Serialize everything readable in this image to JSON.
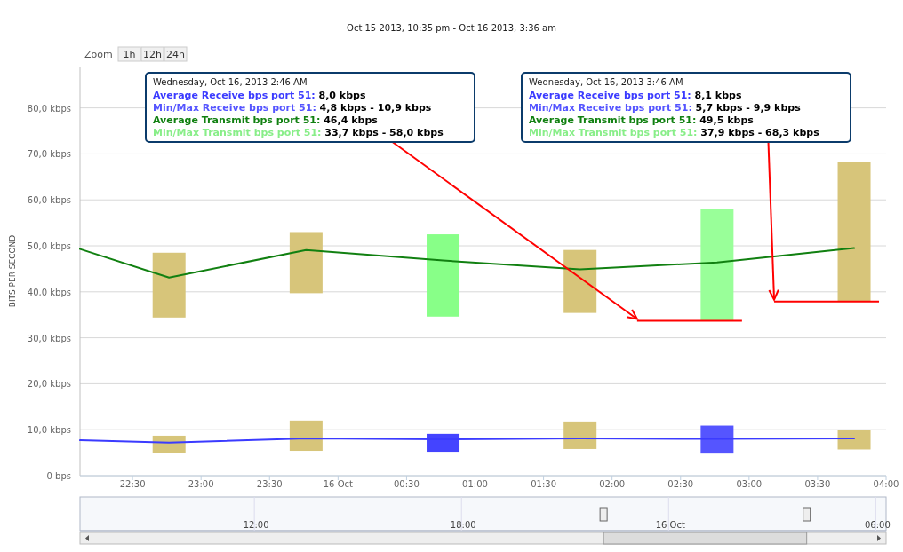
{
  "chart_data": {
    "type": "bar",
    "title": "Oct 15 2013, 10:35 pm - Oct 16 2013, 3:36 am",
    "ylabel": "BITS PER SECOND",
    "xlim": [
      "2013-10-15T22:07",
      "2013-10-16T04:00"
    ],
    "xticks": [
      {
        "value": "2013-10-15T22:30",
        "label": "22:30"
      },
      {
        "value": "2013-10-15T23:00",
        "label": "23:00"
      },
      {
        "value": "2013-10-15T23:30",
        "label": "23:30"
      },
      {
        "value": "2013-10-16T00:00",
        "label": "16 Oct"
      },
      {
        "value": "2013-10-16T00:30",
        "label": "00:30"
      },
      {
        "value": "2013-10-16T01:00",
        "label": "01:00"
      },
      {
        "value": "2013-10-16T01:30",
        "label": "01:30"
      },
      {
        "value": "2013-10-16T02:00",
        "label": "02:00"
      },
      {
        "value": "2013-10-16T02:30",
        "label": "02:30"
      },
      {
        "value": "2013-10-16T03:00",
        "label": "03:00"
      },
      {
        "value": "2013-10-16T03:30",
        "label": "03:30"
      },
      {
        "value": "2013-10-16T04:00",
        "label": "04:00"
      }
    ],
    "ylim": [
      0,
      89
    ],
    "yticks": [
      {
        "value": 0,
        "label": "0 bps"
      },
      {
        "value": 10,
        "label": "10,0 kbps"
      },
      {
        "value": 20,
        "label": "20,0 kbps"
      },
      {
        "value": 30,
        "label": "30,0 kbps"
      },
      {
        "value": 40,
        "label": "40,0 kbps"
      },
      {
        "value": 50,
        "label": "50,0 kbps"
      },
      {
        "value": 60,
        "label": "60,0 kbps"
      },
      {
        "value": 70,
        "label": "70,0 kbps"
      },
      {
        "value": 80,
        "label": "80,0 kbps"
      }
    ],
    "x2lim": [
      "2013-10-15T06:57",
      "2013-10-16T06:18"
    ],
    "x2ticks": [
      {
        "value": "2013-10-15T12:00",
        "label": "12:00"
      },
      {
        "value": "2013-10-15T18:00",
        "label": "18:00"
      },
      {
        "value": "2013-10-16T00:00",
        "label": "16 Oct"
      },
      {
        "value": "2013-10-16T06:00",
        "label": "06:00"
      }
    ],
    "grid": "y",
    "series": [
      {
        "type": "line",
        "color": "#3b3bff",
        "x": [
          "2013-10-15T22:07",
          "2013-10-15T22:46",
          "2013-10-15T23:46",
          "2013-10-16T00:46",
          "2013-10-16T01:46",
          "2013-10-16T02:46",
          "2013-10-16T03:46"
        ],
        "values": [
          7.7,
          7.2,
          8.1,
          7.9,
          8.1,
          8.0,
          8.1
        ]
      },
      {
        "colors": [
          "#d7c57a",
          "#d7c57a",
          "#4444ff",
          "#d7c57a",
          "#5555ff",
          "#d7c57a"
        ],
        "x": [
          "2013-10-15T22:46",
          "2013-10-15T23:46",
          "2013-10-16T00:46",
          "2013-10-16T01:46",
          "2013-10-16T02:46",
          "2013-10-16T03:46"
        ],
        "base": [
          5.0,
          5.4,
          5.2,
          5.8,
          4.8,
          5.7
        ],
        "values": [
          3.7,
          6.6,
          3.9,
          6.0,
          6.1,
          4.2
        ]
      },
      {
        "type": "line",
        "color": "#118011",
        "x": [
          "2013-10-15T22:07",
          "2013-10-15T22:46",
          "2013-10-15T23:46",
          "2013-10-16T00:46",
          "2013-10-16T01:46",
          "2013-10-16T02:46",
          "2013-10-16T03:46"
        ],
        "values": [
          49.3,
          43.1,
          49.1,
          46.8,
          44.9,
          46.4,
          49.5
        ]
      },
      {
        "colors": [
          "#d7c57a",
          "#d7c57a",
          "#88ff88",
          "#d7c57a",
          "#99ff99",
          "#d7c57a"
        ],
        "x": [
          "2013-10-15T22:46",
          "2013-10-15T23:46",
          "2013-10-16T00:46",
          "2013-10-16T01:46",
          "2013-10-16T02:46",
          "2013-10-16T03:46"
        ],
        "base": [
          34.4,
          39.7,
          34.6,
          35.4,
          33.7,
          37.9
        ],
        "values": [
          14.1,
          13.3,
          17.9,
          13.7,
          24.3,
          30.4
        ]
      }
    ],
    "annotations": [
      "Zoom",
      "1h",
      "12h",
      "24h",
      "Wednesday, Oct 16, 2013 3:46 AM",
      "Average Receive bps port 51: 8,1 kbps",
      "Min/Max Receive bps port 51: 5,7 kbps - 9,9 kbps",
      "Average Transmit bps port 51: 49,5 kbps",
      "Min/Max Transmit bps port 51: 37,9 kbps - 68,3 kbps",
      "Wednesday, Oct 16, 2013 2:46 AM",
      "Average Receive bps port 51: 8,0 kbps",
      "Min/Max Receive bps port 51: 4,8 kbps - 10,9 kbps",
      "Average Transmit bps port 51: 46,4 kbps",
      "Min/Max Transmit bps port 51: 33,7 kbps - 58,0 kbps"
    ]
  }
}
